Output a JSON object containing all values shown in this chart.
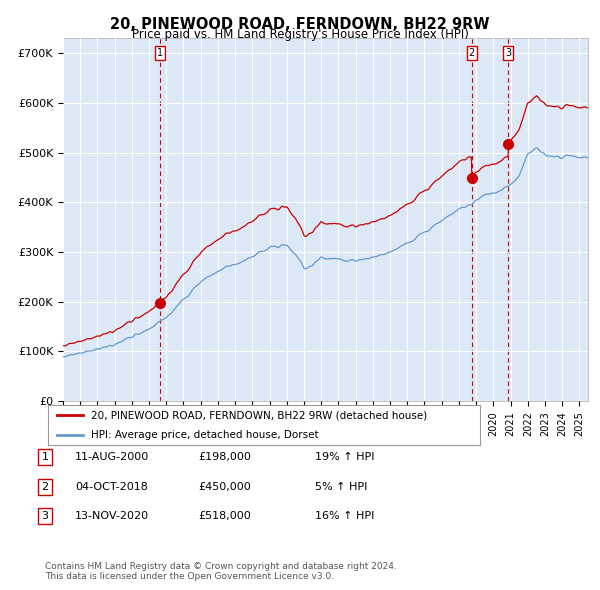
{
  "title": "20, PINEWOOD ROAD, FERNDOWN, BH22 9RW",
  "subtitle": "Price paid vs. HM Land Registry's House Price Index (HPI)",
  "ylabel_ticks": [
    "£0",
    "£100K",
    "£200K",
    "£300K",
    "£400K",
    "£500K",
    "£600K",
    "£700K"
  ],
  "ytick_values": [
    0,
    100000,
    200000,
    300000,
    400000,
    500000,
    600000,
    700000
  ],
  "ylim": [
    0,
    730000
  ],
  "xlim_start": 1995.0,
  "xlim_end": 2025.5,
  "legend_line1": "20, PINEWOOD ROAD, FERNDOWN, BH22 9RW (detached house)",
  "legend_line2": "HPI: Average price, detached house, Dorset",
  "transactions": [
    {
      "num": 1,
      "date_x": 2000.61,
      "price": 198000,
      "label": "1"
    },
    {
      "num": 2,
      "date_x": 2018.75,
      "price": 450000,
      "label": "2"
    },
    {
      "num": 3,
      "date_x": 2020.87,
      "price": 518000,
      "label": "3"
    }
  ],
  "table_rows": [
    {
      "num": "1",
      "date": "11-AUG-2000",
      "price": "£198,000",
      "change": "19% ↑ HPI"
    },
    {
      "num": "2",
      "date": "04-OCT-2018",
      "price": "£450,000",
      "change": "5% ↑ HPI"
    },
    {
      "num": "3",
      "date": "13-NOV-2020",
      "price": "£518,000",
      "change": "16% ↑ HPI"
    }
  ],
  "footnote": "Contains HM Land Registry data © Crown copyright and database right 2024.\nThis data is licensed under the Open Government Licence v3.0.",
  "red_color": "#cc0000",
  "blue_color": "#6699cc",
  "plot_bg_color": "#dce8f5",
  "grid_color": "#ffffff",
  "background_color": "#ffffff",
  "vline_color": "#cc0000",
  "price1": 198000,
  "price2": 450000,
  "price3": 518000,
  "t1": 2000.61,
  "t2": 2018.75,
  "t3": 2020.87
}
